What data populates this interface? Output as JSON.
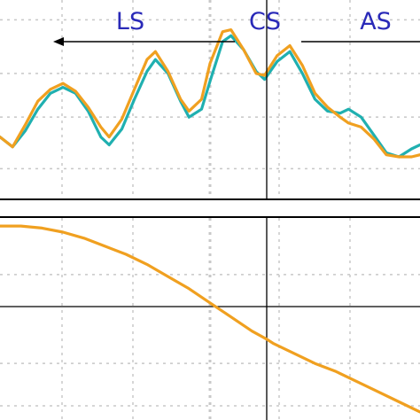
{
  "region_labels": {
    "left": "LS",
    "center": "CS",
    "right": "AS"
  },
  "colors": {
    "teal": "#20b0b0",
    "orange": "#f0a020",
    "label_blue": "#2a2ab8",
    "axis": "#000000",
    "grid": "#c8c8c8"
  },
  "chart_data": [
    {
      "type": "line",
      "title": "",
      "xlabel": "",
      "ylabel": "",
      "xlim": [
        0,
        1
      ],
      "ylim": [
        0,
        1
      ],
      "grid": true,
      "series": [
        {
          "color": "#20b0b0",
          "points": [
            [
              0.0,
              0.31
            ],
            [
              0.03,
              0.26
            ],
            [
              0.06,
              0.34
            ],
            [
              0.09,
              0.45
            ],
            [
              0.12,
              0.53
            ],
            [
              0.15,
              0.56
            ],
            [
              0.18,
              0.53
            ],
            [
              0.21,
              0.44
            ],
            [
              0.24,
              0.31
            ],
            [
              0.26,
              0.27
            ],
            [
              0.29,
              0.35
            ],
            [
              0.32,
              0.5
            ],
            [
              0.35,
              0.64
            ],
            [
              0.37,
              0.7
            ],
            [
              0.4,
              0.63
            ],
            [
              0.43,
              0.49
            ],
            [
              0.45,
              0.41
            ],
            [
              0.48,
              0.45
            ],
            [
              0.5,
              0.59
            ],
            [
              0.53,
              0.79
            ],
            [
              0.55,
              0.82
            ],
            [
              0.58,
              0.75
            ],
            [
              0.61,
              0.64
            ],
            [
              0.63,
              0.6
            ],
            [
              0.66,
              0.69
            ],
            [
              0.69,
              0.74
            ],
            [
              0.72,
              0.63
            ],
            [
              0.75,
              0.5
            ],
            [
              0.78,
              0.44
            ],
            [
              0.81,
              0.43
            ],
            [
              0.83,
              0.45
            ],
            [
              0.86,
              0.41
            ],
            [
              0.89,
              0.32
            ],
            [
              0.92,
              0.23
            ],
            [
              0.95,
              0.21
            ],
            [
              0.98,
              0.25
            ],
            [
              1.0,
              0.27
            ]
          ]
        },
        {
          "color": "#f0a020",
          "points": [
            [
              0.0,
              0.31
            ],
            [
              0.03,
              0.26
            ],
            [
              0.06,
              0.37
            ],
            [
              0.09,
              0.49
            ],
            [
              0.12,
              0.55
            ],
            [
              0.15,
              0.58
            ],
            [
              0.18,
              0.54
            ],
            [
              0.21,
              0.46
            ],
            [
              0.24,
              0.36
            ],
            [
              0.26,
              0.31
            ],
            [
              0.29,
              0.4
            ],
            [
              0.32,
              0.55
            ],
            [
              0.35,
              0.7
            ],
            [
              0.37,
              0.74
            ],
            [
              0.4,
              0.64
            ],
            [
              0.43,
              0.5
            ],
            [
              0.45,
              0.44
            ],
            [
              0.48,
              0.5
            ],
            [
              0.5,
              0.68
            ],
            [
              0.53,
              0.84
            ],
            [
              0.55,
              0.85
            ],
            [
              0.58,
              0.75
            ],
            [
              0.61,
              0.63
            ],
            [
              0.63,
              0.62
            ],
            [
              0.66,
              0.72
            ],
            [
              0.69,
              0.77
            ],
            [
              0.72,
              0.67
            ],
            [
              0.75,
              0.53
            ],
            [
              0.78,
              0.46
            ],
            [
              0.81,
              0.41
            ],
            [
              0.83,
              0.38
            ],
            [
              0.86,
              0.36
            ],
            [
              0.89,
              0.3
            ],
            [
              0.92,
              0.22
            ],
            [
              0.95,
              0.21
            ],
            [
              0.98,
              0.21
            ],
            [
              1.0,
              0.22
            ]
          ]
        }
      ]
    },
    {
      "type": "line",
      "title": "",
      "xlabel": "",
      "ylabel": "",
      "xlim": [
        0,
        1
      ],
      "ylim": [
        0,
        1
      ],
      "grid": true,
      "series": [
        {
          "color": "#f0a020",
          "points": [
            [
              0.0,
              0.96
            ],
            [
              0.05,
              0.96
            ],
            [
              0.1,
              0.95
            ],
            [
              0.15,
              0.93
            ],
            [
              0.2,
              0.9
            ],
            [
              0.25,
              0.86
            ],
            [
              0.3,
              0.82
            ],
            [
              0.35,
              0.77
            ],
            [
              0.4,
              0.71
            ],
            [
              0.45,
              0.65
            ],
            [
              0.5,
              0.58
            ],
            [
              0.55,
              0.51
            ],
            [
              0.6,
              0.44
            ],
            [
              0.635,
              0.4
            ],
            [
              0.65,
              0.38
            ],
            [
              0.7,
              0.33
            ],
            [
              0.75,
              0.28
            ],
            [
              0.8,
              0.24
            ],
            [
              0.85,
              0.19
            ],
            [
              0.9,
              0.14
            ],
            [
              0.95,
              0.09
            ],
            [
              1.0,
              0.04
            ]
          ]
        }
      ]
    }
  ]
}
